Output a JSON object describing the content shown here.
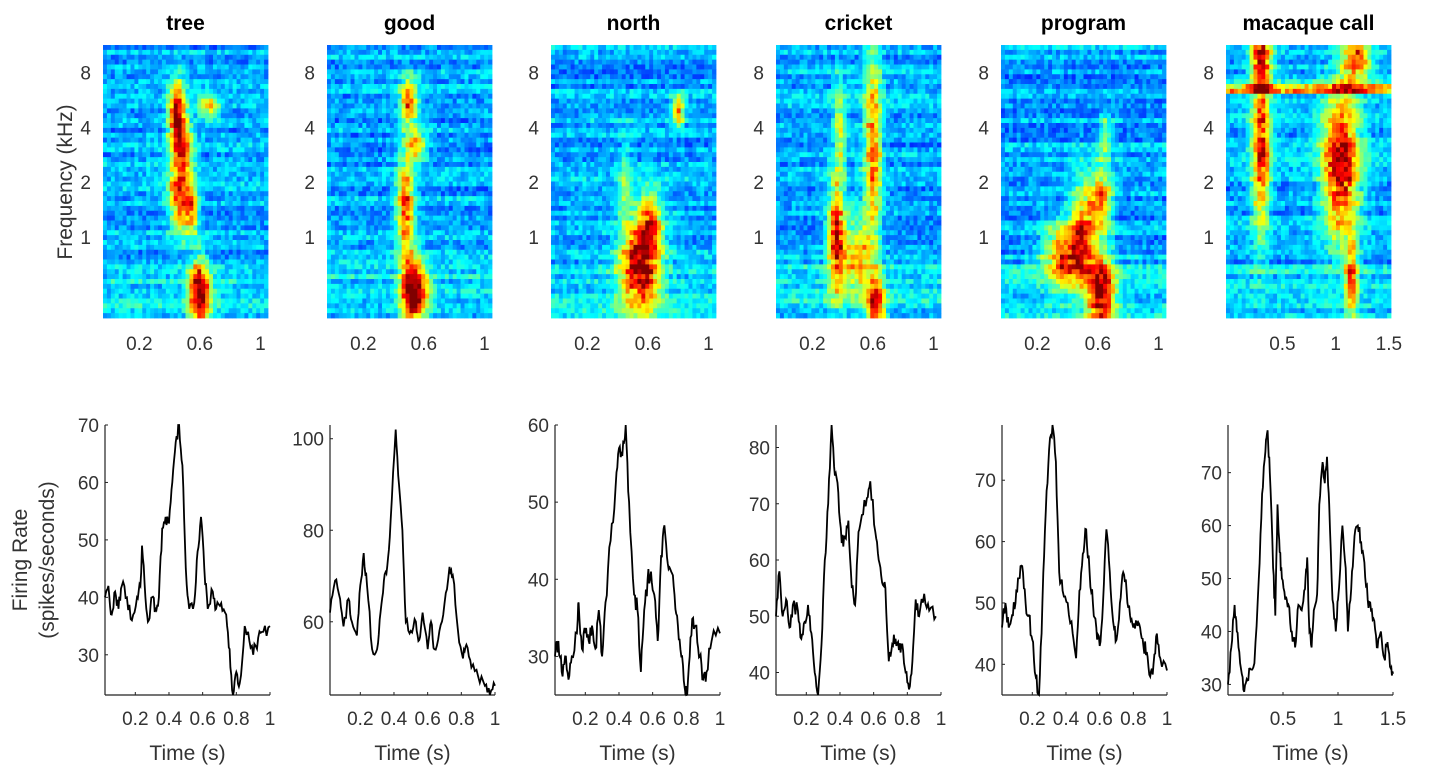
{
  "chart_data": [
    {
      "title": "tree",
      "spectrogram": {
        "type": "heatmap",
        "xlim": [
          -0.04,
          1.05
        ],
        "ylim_khz": [
          0.36,
          11.3
        ],
        "yscale": "log",
        "xticks": [
          "0.2",
          "0.6",
          "1"
        ],
        "xtick_values": [
          0.2,
          0.6,
          1
        ],
        "yticks": [
          "1",
          "2",
          "4",
          "8"
        ],
        "ytick_values": [
          1,
          2,
          4,
          8
        ],
        "ylabel": "Frequency (kHz)",
        "energy_regions": [
          [
            0.45,
            4.5,
            0.04,
            0.45,
            0.75
          ],
          [
            0.47,
            1.7,
            0.05,
            0.45,
            0.6
          ],
          [
            0.6,
            0.5,
            0.05,
            0.4,
            0.72
          ],
          [
            0.55,
            1.4,
            0.03,
            0.3,
            0.4
          ],
          [
            0.66,
            5.2,
            0.05,
            0.15,
            0.4
          ],
          [
            0.5,
            3,
            0.04,
            0.3,
            0.35
          ]
        ]
      },
      "firing_rate": {
        "type": "line",
        "xlim": [
          0.02,
          1
        ],
        "ylim": [
          23,
          70
        ],
        "xticks": [
          "0.2",
          "0.4",
          "0.6",
          "0.8",
          "1"
        ],
        "xtick_values": [
          0.2,
          0.4,
          0.6,
          0.8,
          1
        ],
        "yticks": [
          "30",
          "40",
          "50",
          "60",
          "70"
        ],
        "ytick_values": [
          30,
          40,
          50,
          60,
          70
        ],
        "xlabel": "Time (s)",
        "ylabel": [
          "Firing Rate",
          "(spikes/seconds)"
        ],
        "x": [
          0.02,
          0.04,
          0.06,
          0.08,
          0.1,
          0.12,
          0.15,
          0.18,
          0.21,
          0.23,
          0.24,
          0.26,
          0.28,
          0.3,
          0.32,
          0.34,
          0.36,
          0.38,
          0.4,
          0.42,
          0.44,
          0.46,
          0.48,
          0.5,
          0.52,
          0.55,
          0.57,
          0.59,
          0.61,
          0.63,
          0.66,
          0.68,
          0.71,
          0.74,
          0.76,
          0.78,
          0.8,
          0.82,
          0.85,
          0.87,
          0.9,
          0.93,
          0.96,
          1
        ],
        "y": [
          40,
          42,
          37,
          41,
          38,
          42,
          40,
          36,
          40,
          42,
          49,
          40,
          36,
          40,
          38,
          40,
          52,
          54,
          53,
          60,
          67,
          70,
          63,
          45,
          38,
          39,
          48,
          54,
          45,
          38,
          41,
          38,
          39,
          37,
          31,
          23,
          27,
          25,
          35,
          34,
          30,
          33,
          34,
          35
        ]
      }
    },
    {
      "title": "good",
      "spectrogram": {
        "type": "heatmap",
        "xlim": [
          -0.04,
          1.05
        ],
        "ylim_khz": [
          0.36,
          11.3
        ],
        "yscale": "log",
        "xticks": [
          "0.2",
          "0.6",
          "1"
        ],
        "xtick_values": [
          0.2,
          0.6,
          1
        ],
        "yticks": [
          "1",
          "2",
          "4",
          "8"
        ],
        "ytick_values": [
          1,
          2,
          4,
          8
        ],
        "energy_regions": [
          [
            0.52,
            0.5,
            0.05,
            0.45,
            0.75
          ],
          [
            0.48,
            1.5,
            0.04,
            0.6,
            0.55
          ],
          [
            0.5,
            5.5,
            0.04,
            0.3,
            0.55
          ],
          [
            0.55,
            3.2,
            0.05,
            0.2,
            0.4
          ],
          [
            0.6,
            0.5,
            0.04,
            0.3,
            0.3
          ]
        ]
      },
      "firing_rate": {
        "type": "line",
        "xlim": [
          0.02,
          1
        ],
        "ylim": [
          44,
          103
        ],
        "xticks": [
          "0.2",
          "0.4",
          "0.6",
          "0.8",
          "1"
        ],
        "xtick_values": [
          0.2,
          0.4,
          0.6,
          0.8,
          1
        ],
        "yticks": [
          "60",
          "80",
          "100"
        ],
        "ytick_values": [
          60,
          80,
          100
        ],
        "xlabel": "Time (s)",
        "x": [
          0.02,
          0.05,
          0.08,
          0.1,
          0.13,
          0.15,
          0.18,
          0.2,
          0.22,
          0.24,
          0.27,
          0.3,
          0.32,
          0.34,
          0.36,
          0.38,
          0.41,
          0.43,
          0.45,
          0.47,
          0.5,
          0.53,
          0.55,
          0.57,
          0.6,
          0.62,
          0.64,
          0.67,
          0.7,
          0.73,
          0.75,
          0.78,
          0.81,
          0.83,
          0.86,
          0.9,
          0.94,
          0.97,
          1
        ],
        "y": [
          62,
          69,
          65,
          59,
          65,
          60,
          57,
          68,
          75,
          68,
          54,
          54,
          62,
          69,
          72,
          82,
          102,
          90,
          80,
          60,
          58,
          60,
          56,
          62,
          54,
          60,
          54,
          58,
          64,
          72,
          70,
          58,
          52,
          55,
          50,
          48,
          46,
          44,
          46
        ]
      }
    },
    {
      "title": "north",
      "spectrogram": {
        "type": "heatmap",
        "xlim": [
          -0.04,
          1.05
        ],
        "ylim_khz": [
          0.36,
          11.3
        ],
        "yscale": "log",
        "xticks": [
          "0.2",
          "0.6",
          "1"
        ],
        "xtick_values": [
          0.2,
          0.6,
          1
        ],
        "yticks": [
          "1",
          "2",
          "4",
          "8"
        ],
        "ytick_values": [
          1,
          2,
          4,
          8
        ],
        "energy_regions": [
          [
            0.55,
            0.7,
            0.09,
            0.6,
            0.7
          ],
          [
            0.62,
            1.2,
            0.05,
            0.4,
            0.4
          ],
          [
            0.8,
            5,
            0.03,
            0.2,
            0.45
          ],
          [
            0.45,
            2,
            0.03,
            0.5,
            0.2
          ]
        ]
      },
      "firing_rate": {
        "type": "line",
        "xlim": [
          0.02,
          1
        ],
        "ylim": [
          25,
          60
        ],
        "xticks": [
          "0.2",
          "0.4",
          "0.6",
          "0.8",
          "1"
        ],
        "xtick_values": [
          0.2,
          0.4,
          0.6,
          0.8,
          1
        ],
        "yticks": [
          "30",
          "40",
          "50",
          "60"
        ],
        "ytick_values": [
          30,
          40,
          50,
          60
        ],
        "xlabel": "Time (s)",
        "x": [
          0.02,
          0.04,
          0.06,
          0.08,
          0.1,
          0.12,
          0.15,
          0.16,
          0.18,
          0.2,
          0.22,
          0.24,
          0.26,
          0.28,
          0.3,
          0.32,
          0.35,
          0.38,
          0.4,
          0.42,
          0.44,
          0.46,
          0.49,
          0.51,
          0.53,
          0.55,
          0.57,
          0.59,
          0.61,
          0.63,
          0.65,
          0.67,
          0.69,
          0.71,
          0.73,
          0.75,
          0.77,
          0.79,
          0.8,
          0.82,
          0.84,
          0.86,
          0.88,
          0.9,
          0.92,
          0.95,
          1
        ],
        "y": [
          30,
          32,
          28,
          30,
          27,
          30,
          33,
          37,
          31,
          33,
          32,
          34,
          31,
          36,
          30,
          37,
          45,
          52,
          57,
          56,
          60,
          50,
          38,
          36,
          28,
          36,
          40,
          41,
          38,
          32,
          43,
          47,
          42,
          41,
          38,
          34,
          30,
          26,
          25,
          30,
          35,
          34,
          30,
          27,
          28,
          32,
          33
        ]
      }
    },
    {
      "title": "cricket",
      "spectrogram": {
        "type": "heatmap",
        "xlim": [
          -0.04,
          1.05
        ],
        "ylim_khz": [
          0.36,
          11.3
        ],
        "yscale": "log",
        "xticks": [
          "0.2",
          "0.6",
          "1"
        ],
        "xtick_values": [
          0.2,
          0.6,
          1
        ],
        "yticks": [
          "1",
          "2",
          "4",
          "8"
        ],
        "ytick_values": [
          1,
          2,
          4,
          8
        ],
        "energy_regions": [
          [
            0.36,
            1,
            0.04,
            0.7,
            0.65
          ],
          [
            0.62,
            0.4,
            0.04,
            0.4,
            0.6
          ],
          [
            0.6,
            3,
            0.04,
            1.3,
            0.5
          ],
          [
            0.38,
            4,
            0.03,
            0.6,
            0.3
          ],
          [
            0.5,
            0.8,
            0.06,
            0.5,
            0.4
          ]
        ]
      },
      "firing_rate": {
        "type": "line",
        "xlim": [
          0.02,
          1
        ],
        "ylim": [
          36,
          84
        ],
        "xticks": [
          "0.2",
          "0.4",
          "0.6",
          "0.8",
          "1"
        ],
        "xtick_values": [
          0.2,
          0.4,
          0.6,
          0.8,
          1
        ],
        "yticks": [
          "40",
          "50",
          "60",
          "70",
          "80"
        ],
        "ytick_values": [
          40,
          50,
          60,
          70,
          80
        ],
        "xlabel": "Time (s)",
        "x": [
          0.02,
          0.04,
          0.06,
          0.08,
          0.1,
          0.12,
          0.15,
          0.17,
          0.19,
          0.21,
          0.23,
          0.25,
          0.27,
          0.29,
          0.31,
          0.33,
          0.35,
          0.37,
          0.39,
          0.41,
          0.43,
          0.45,
          0.47,
          0.49,
          0.51,
          0.53,
          0.56,
          0.58,
          0.61,
          0.63,
          0.65,
          0.67,
          0.69,
          0.71,
          0.73,
          0.75,
          0.77,
          0.79,
          0.81,
          0.83,
          0.85,
          0.87,
          0.9,
          0.93,
          0.97
        ],
        "y": [
          50,
          58,
          50,
          53,
          48,
          52,
          51,
          46,
          49,
          52,
          47,
          40,
          36,
          45,
          60,
          70,
          84,
          75,
          72,
          63,
          64,
          67,
          55,
          52,
          65,
          68,
          71,
          74,
          65,
          60,
          56,
          55,
          42,
          45,
          46,
          44,
          45,
          40,
          37,
          42,
          53,
          50,
          54,
          51,
          50
        ]
      }
    },
    {
      "title": "program",
      "spectrogram": {
        "type": "heatmap",
        "xlim": [
          -0.04,
          1.05
        ],
        "ylim_khz": [
          0.36,
          11.3
        ],
        "yscale": "log",
        "xticks": [
          "0.2",
          "0.6",
          "1"
        ],
        "xtick_values": [
          0.2,
          0.6,
          1
        ],
        "yticks": [
          "1",
          "2",
          "4",
          "8"
        ],
        "ytick_values": [
          1,
          2,
          4,
          8
        ],
        "energy_regions": [
          [
            0.4,
            0.8,
            0.1,
            0.4,
            0.6
          ],
          [
            0.62,
            0.5,
            0.06,
            0.5,
            0.7
          ],
          [
            0.62,
            1.6,
            0.05,
            0.4,
            0.5
          ],
          [
            0.65,
            3.5,
            0.03,
            0.3,
            0.25
          ],
          [
            0.5,
            1.2,
            0.05,
            0.6,
            0.4
          ]
        ]
      },
      "firing_rate": {
        "type": "line",
        "xlim": [
          0.02,
          1
        ],
        "ylim": [
          35,
          79
        ],
        "xticks": [
          "0.2",
          "0.4",
          "0.6",
          "0.8",
          "1"
        ],
        "xtick_values": [
          0.2,
          0.4,
          0.6,
          0.8,
          1
        ],
        "yticks": [
          "40",
          "50",
          "60",
          "70"
        ],
        "ytick_values": [
          40,
          50,
          60,
          70
        ],
        "xlabel": "Time (s)",
        "x": [
          0.02,
          0.04,
          0.06,
          0.08,
          0.1,
          0.12,
          0.14,
          0.16,
          0.18,
          0.2,
          0.22,
          0.24,
          0.26,
          0.28,
          0.3,
          0.32,
          0.34,
          0.36,
          0.38,
          0.41,
          0.44,
          0.46,
          0.48,
          0.5,
          0.52,
          0.54,
          0.56,
          0.58,
          0.6,
          0.62,
          0.64,
          0.66,
          0.68,
          0.7,
          0.72,
          0.74,
          0.76,
          0.78,
          0.8,
          0.82,
          0.84,
          0.86,
          0.88,
          0.9,
          0.92,
          0.94,
          0.96,
          1
        ],
        "y": [
          46,
          50,
          46,
          48,
          50,
          54,
          56,
          50,
          48,
          44,
          38,
          35,
          50,
          65,
          75,
          79,
          73,
          55,
          52,
          50,
          45,
          41,
          52,
          58,
          62,
          55,
          50,
          46,
          43,
          50,
          62,
          55,
          47,
          44,
          50,
          55,
          52,
          48,
          46,
          47,
          46,
          43,
          42,
          38,
          40,
          45,
          41,
          39
        ]
      }
    },
    {
      "title": "macaque call",
      "spectrogram": {
        "type": "heatmap",
        "xlim": [
          -0.03,
          1.52
        ],
        "ylim_khz": [
          0.36,
          11.3
        ],
        "yscale": "log",
        "xticks": [
          "0.5",
          "1",
          "1.5"
        ],
        "xtick_values": [
          0.5,
          1,
          1.5
        ],
        "yticks": [
          "1",
          "2",
          "4",
          "8"
        ],
        "ytick_values": [
          1,
          2,
          4,
          8
        ],
        "energy_regions": [
          [
            0.3,
            3,
            0.06,
            1.0,
            0.6
          ],
          [
            1.05,
            2.5,
            0.12,
            0.9,
            0.7
          ],
          [
            1.15,
            0.6,
            0.04,
            0.5,
            0.5
          ],
          [
            0.3,
            9.5,
            0.07,
            0.3,
            0.55
          ],
          [
            1.2,
            9.5,
            0.1,
            0.3,
            0.5
          ],
          [
            0.75,
            6.5,
            2,
            0.06,
            0.55
          ]
        ]
      },
      "firing_rate": {
        "type": "line",
        "xlim": [
          0,
          1.5
        ],
        "ylim": [
          28,
          79
        ],
        "xticks": [
          "0.5",
          "1",
          "1.5"
        ],
        "xtick_values": [
          0.5,
          1,
          1.5
        ],
        "yticks": [
          "30",
          "40",
          "50",
          "60",
          "70"
        ],
        "ytick_values": [
          30,
          40,
          50,
          60,
          70
        ],
        "xlabel": "Time (s)",
        "x": [
          0,
          0.03,
          0.06,
          0.08,
          0.11,
          0.14,
          0.17,
          0.2,
          0.24,
          0.28,
          0.31,
          0.34,
          0.36,
          0.38,
          0.41,
          0.43,
          0.45,
          0.47,
          0.49,
          0.52,
          0.55,
          0.58,
          0.61,
          0.64,
          0.67,
          0.7,
          0.72,
          0.74,
          0.76,
          0.78,
          0.81,
          0.83,
          0.86,
          0.88,
          0.9,
          0.92,
          0.95,
          0.98,
          1.0,
          1.04,
          1.07,
          1.09,
          1.12,
          1.15,
          1.18,
          1.21,
          1.24,
          1.27,
          1.3,
          1.33,
          1.36,
          1.39,
          1.42,
          1.45,
          1.48,
          1.5
        ],
        "y": [
          30,
          37,
          45,
          40,
          34,
          29,
          31,
          33,
          34,
          50,
          66,
          74,
          78,
          70,
          52,
          43,
          64,
          55,
          50,
          46,
          45,
          40,
          37,
          45,
          44,
          48,
          54,
          40,
          37,
          44,
          47,
          64,
          72,
          68,
          73,
          64,
          46,
          40,
          46,
          60,
          52,
          40,
          48,
          58,
          60,
          57,
          53,
          46,
          44,
          42,
          37,
          40,
          35,
          38,
          33,
          32
        ]
      }
    }
  ]
}
